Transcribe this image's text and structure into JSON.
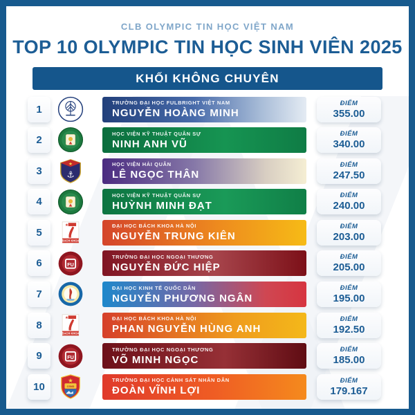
{
  "frame": {
    "border_color": "#175a8e",
    "background": "#ffffff"
  },
  "header": {
    "club_label": "CLB OLYMPIC TIN HỌC VIỆT NAM",
    "club_color": "#7fa6c9",
    "title": "TOP 10 OLYMPIC TIN HỌC SINH VIÊN 2025",
    "title_color": "#1c5d95",
    "category": "KHỐI KHÔNG CHUYÊN",
    "banner_bg": "#15568c",
    "banner_text_color": "#ffffff"
  },
  "score_label": "ĐIỂM",
  "accent_color": "#1b5c94",
  "rows": [
    {
      "rank": "1",
      "school": "TRƯỜNG ĐẠI HỌC FULBRIGHT VIỆT NAM",
      "name": "NGUYỄN HOÀNG MINH",
      "score": "355.00",
      "logo": "fulbright",
      "bar_gradient": [
        "#22407b 0%",
        "#486baa 45%",
        "#a9bdd8 78%",
        "#e4ebf3 100%"
      ]
    },
    {
      "rank": "2",
      "school": "HỌC VIỆN KỸ THUẬT QUÂN SỰ",
      "name": "NINH ANH VŨ",
      "score": "340.00",
      "logo": "mta",
      "bar_gradient": [
        "#0b6e3e 0%",
        "#169452 60%",
        "#0f7c45 100%"
      ]
    },
    {
      "rank": "3",
      "school": "HỌC VIỆN HẢI QUÂN",
      "name": "LÊ NGỌC THÂN",
      "score": "247.50",
      "logo": "navy",
      "bar_gradient": [
        "#4a2b80 0%",
        "#8678a8 45%",
        "#d8cec2 80%",
        "#f5eed3 100%"
      ]
    },
    {
      "rank": "4",
      "school": "HỌC VIỆN KỸ THUẬT QUÂN SỰ",
      "name": "HUỲNH MINH ĐẠT",
      "score": "240.00",
      "logo": "mta",
      "bar_gradient": [
        "#0d7441 0%",
        "#1a9a58 60%",
        "#107f47 100%"
      ]
    },
    {
      "rank": "5",
      "school": "ĐẠI HỌC BÁCH KHOA HÀ NỘI",
      "name": "NGUYỄN TRUNG KIÊN",
      "score": "203.00",
      "logo": "hust",
      "bar_gradient": [
        "#d4452b 0%",
        "#ee8c1e 58%",
        "#f6bb16 100%"
      ]
    },
    {
      "rank": "6",
      "school": "TRƯỜNG ĐẠI HỌC NGOẠI THƯƠNG",
      "name": "NGUYỄN ĐỨC HIỆP",
      "score": "205.00",
      "logo": "ftu",
      "bar_gradient": [
        "#801523 0%",
        "#a7454c 55%",
        "#7c1018 100%"
      ]
    },
    {
      "rank": "7",
      "school": "ĐẠI HỌC KINH TẾ QUỐC DÂN",
      "name": "NGUYỄN PHƯƠNG NGÂN",
      "score": "195.00",
      "logo": "neu",
      "bar_gradient": [
        "#1e88cb 0%",
        "#7668a6 45%",
        "#cf4752 80%",
        "#d63540 100%"
      ]
    },
    {
      "rank": "8",
      "school": "ĐẠI HỌC BÁCH KHOA HÀ NỘI",
      "name": "PHAN NGUYỄN HÙNG ANH",
      "score": "192.50",
      "logo": "hust",
      "bar_gradient": [
        "#d6402a 0%",
        "#ef9c1d 65%",
        "#f4b81a 100%"
      ]
    },
    {
      "rank": "9",
      "school": "TRƯỜNG ĐẠI HỌC NGOẠI THƯƠNG",
      "name": "VÕ MINH NGỌC",
      "score": "185.00",
      "logo": "ftu",
      "bar_gradient": [
        "#6d1019 0%",
        "#963036 60%",
        "#5f0c13 100%"
      ]
    },
    {
      "rank": "10",
      "school": "TRƯỜNG ĐẠI HỌC CẢNH SÁT NHÂN DÂN",
      "name": "ĐOÀN VĨNH LỢI",
      "score": "179.167",
      "logo": "police",
      "bar_gradient": [
        "#e03a2b 0%",
        "#ef5d24 55%",
        "#f58a1d 100%"
      ]
    }
  ]
}
